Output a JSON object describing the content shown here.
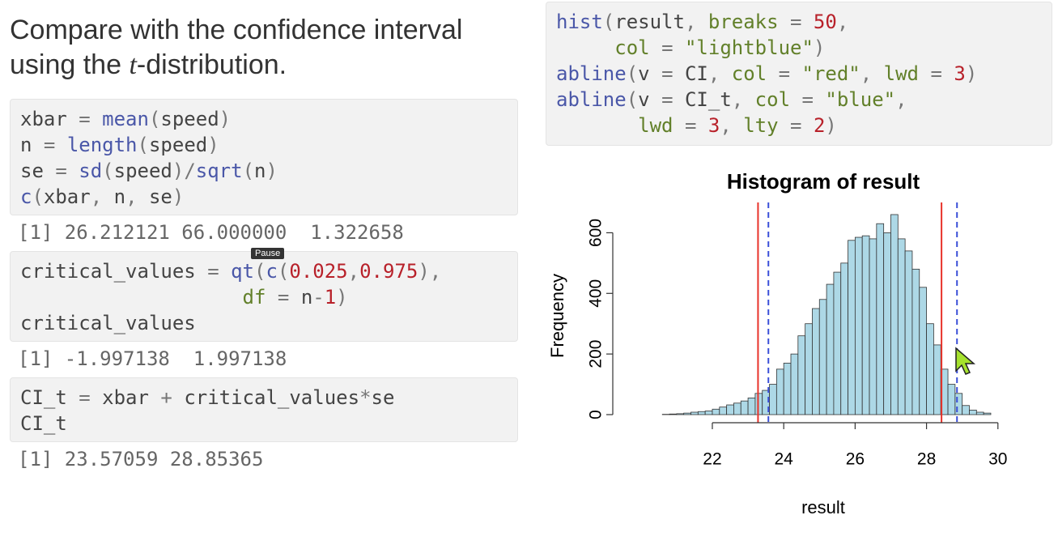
{
  "heading": {
    "before": "Compare with the confidence interval using the ",
    "italic": "t",
    "after": "-distribution."
  },
  "left_blocks": [
    {
      "code": [
        "xbar = mean(speed)",
        "n = length(speed)",
        "se = sd(speed)/sqrt(n)",
        "c(xbar, n, se)"
      ],
      "output": "[1] 26.212121 66.000000  1.322658"
    },
    {
      "code": [
        "critical_values = qt(c(0.025,0.975),",
        "                   df = n-1)",
        "critical_values"
      ],
      "output": "[1] -1.997138  1.997138"
    },
    {
      "code": [
        "CI_t = xbar + critical_values*se",
        "CI_t"
      ],
      "output": "[1] 23.57059 28.85365"
    }
  ],
  "tooltip": "Pause",
  "right_code": [
    "hist(result, breaks = 50,",
    "     col = \"lightblue\")",
    "abline(v = CI, col = \"red\", lwd = 3)",
    "abline(v = CI_t, col = \"blue\",",
    "       lwd = 3, lty = 2)"
  ],
  "chart_data": {
    "type": "histogram",
    "title": "Histogram of result",
    "xlabel": "result",
    "ylabel": "Frequency",
    "bins": [
      20.6,
      20.8,
      21.0,
      21.2,
      21.4,
      21.6,
      21.8,
      22.0,
      22.2,
      22.4,
      22.6,
      22.8,
      23.0,
      23.2,
      23.4,
      23.6,
      23.8,
      24.0,
      24.2,
      24.4,
      24.6,
      24.8,
      25.0,
      25.2,
      25.4,
      25.6,
      25.8,
      26.0,
      26.2,
      26.4,
      26.6,
      26.8,
      27.0,
      27.2,
      27.4,
      27.6,
      27.8,
      28.0,
      28.2,
      28.4,
      28.6,
      28.8,
      29.0,
      29.2,
      29.4,
      29.6,
      29.8
    ],
    "counts": [
      1,
      2,
      3,
      5,
      8,
      10,
      12,
      18,
      25,
      32,
      38,
      45,
      55,
      70,
      80,
      100,
      150,
      170,
      200,
      260,
      300,
      350,
      380,
      430,
      470,
      500,
      575,
      585,
      590,
      580,
      630,
      600,
      660,
      580,
      540,
      480,
      420,
      300,
      230,
      150,
      100,
      70,
      30,
      15,
      8,
      5
    ],
    "color": "#add8e6",
    "xlim": [
      20.2,
      30.2
    ],
    "xticks": [
      22,
      24,
      26,
      28,
      30
    ],
    "ylim": [
      0,
      700
    ],
    "yticks": [
      0,
      200,
      400,
      600
    ],
    "ci": [
      23.28,
      28.42
    ],
    "ci_color": "#e8332a",
    "ci_t": [
      23.57059,
      28.85365
    ],
    "ci_t_color": "#3a4fd8",
    "ci_t_dashed": true
  }
}
